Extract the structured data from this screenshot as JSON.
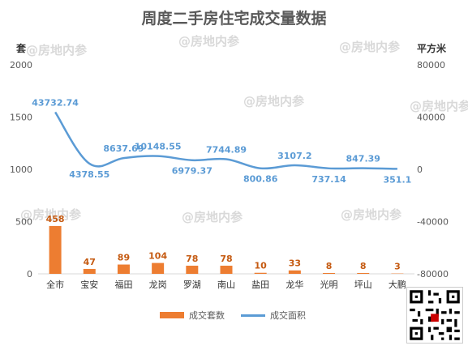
{
  "title": "周度二手房住宅成交量数据",
  "left_unit": "套",
  "right_unit": "平方米",
  "watermark_text": "@房地内参",
  "legend": {
    "bar_label": "成交套数",
    "line_label": "成交面积"
  },
  "colors": {
    "bar": "#ed7d31",
    "line": "#5b9bd5",
    "bar_label": "#c55a11",
    "line_label": "#5b9bd5"
  },
  "chart_data": {
    "type": "bar",
    "categories": [
      "全市",
      "宝安",
      "福田",
      "龙岗",
      "罗湖",
      "南山",
      "盐田",
      "龙华",
      "光明",
      "坪山",
      "大鹏"
    ],
    "series": [
      {
        "name": "成交套数",
        "type": "bar",
        "axis": "left",
        "values": [
          458,
          47,
          89,
          104,
          78,
          78,
          10,
          33,
          8,
          8,
          3
        ]
      },
      {
        "name": "成交面积",
        "type": "line",
        "axis": "right",
        "values": [
          43732.74,
          4378.55,
          8637.69,
          10148.55,
          6979.37,
          7744.89,
          800.86,
          3107.2,
          737.14,
          847.39,
          351.1
        ]
      }
    ],
    "left_axis": {
      "min": 0,
      "max": 2000,
      "ticks": [
        0,
        500,
        1000,
        1500,
        2000
      ]
    },
    "right_axis": {
      "min": -80000,
      "max": 80000,
      "ticks": [
        -80000,
        -40000,
        0,
        40000,
        80000
      ]
    },
    "grid": false,
    "legend_position": "bottom"
  }
}
